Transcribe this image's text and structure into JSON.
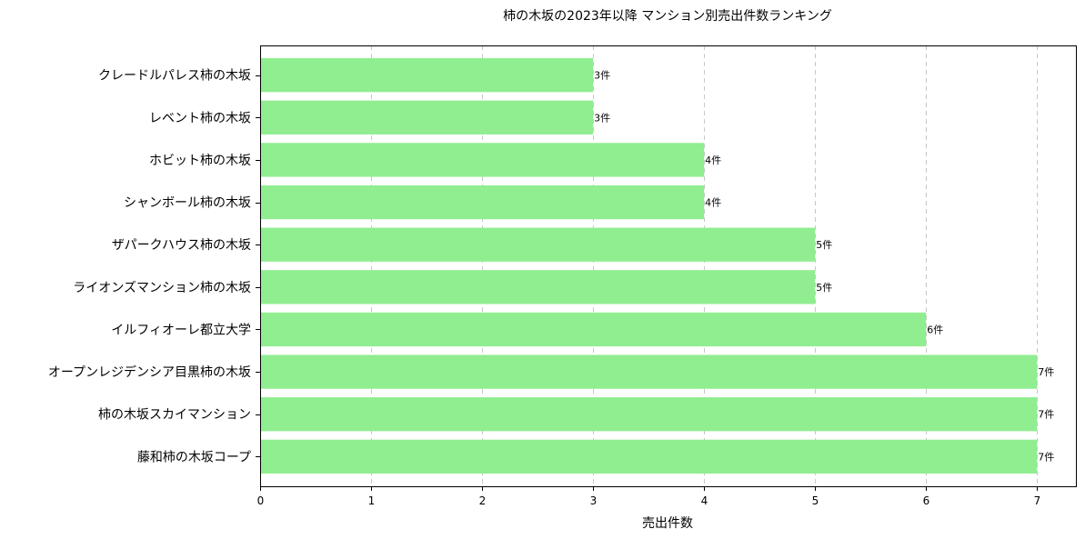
{
  "chart_data": {
    "type": "bar",
    "orientation": "horizontal",
    "title": "柿の木坂の2023年以降 マンション別売出件数ランキング",
    "xlabel": "売出件数",
    "ylabel": "",
    "categories": [
      "藤和柿の木坂コープ",
      "柿の木坂スカイマンション",
      "オープンレジデンシア目黒柿の木坂",
      "イルフィオーレ都立大学",
      "ライオンズマンション柿の木坂",
      "ザパークハウス柿の木坂",
      "シャンボール柿の木坂",
      "ホビット柿の木坂",
      "レベント柿の木坂",
      "クレードルパレス柿の木坂"
    ],
    "values": [
      7,
      7,
      7,
      6,
      5,
      5,
      4,
      4,
      3,
      3
    ],
    "data_labels": [
      "7件",
      "7件",
      "7件",
      "6件",
      "5件",
      "5件",
      "4件",
      "4件",
      "3件",
      "3件"
    ],
    "xlim": [
      0,
      7.35
    ],
    "xticks": [
      0,
      1,
      2,
      3,
      4,
      5,
      6,
      7
    ],
    "grid": "x-dashed",
    "bar_color": "#90ee90"
  }
}
